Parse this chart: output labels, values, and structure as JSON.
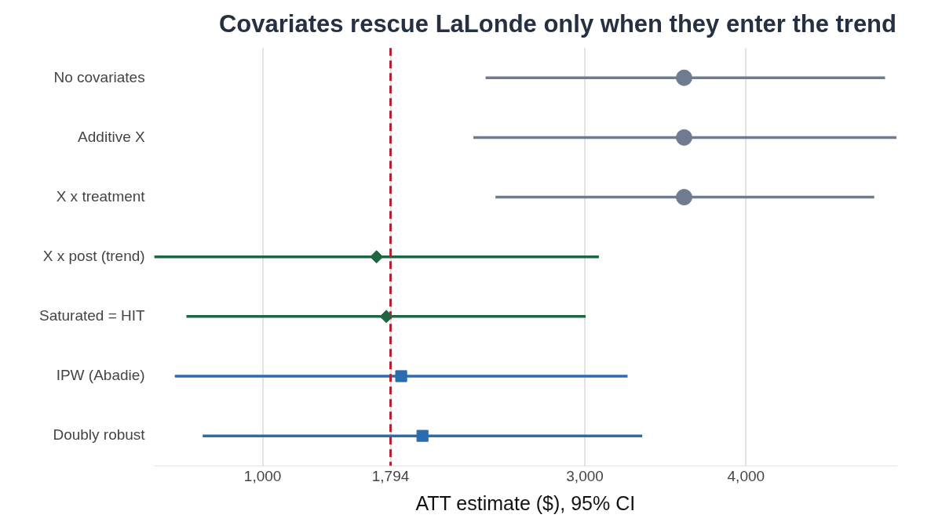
{
  "chart_data": {
    "type": "scatter",
    "orientation": "horizontal",
    "title": "Covariates rescue LaLonde only when they enter the trend",
    "xlabel": "ATT estimate ($), 95% CI",
    "categories": [
      "No covariates",
      "Additive X",
      "X x treatment",
      "X x post (trend)",
      "Saturated = HIT",
      "IPW (Abadie)",
      "Doubly robust"
    ],
    "series": [
      {
        "color": "#6e7b91",
        "marker": "circle",
        "values": [
          3616,
          3616,
          3616,
          null,
          null,
          null,
          null
        ],
        "errors": [
          [
            2384,
            4863
          ],
          [
            2308,
            4934
          ],
          [
            2445,
            4796
          ],
          null,
          null,
          null,
          null
        ]
      },
      {
        "color": "#1f6645",
        "marker": "diamond",
        "values": [
          null,
          null,
          null,
          1707,
          1768,
          null,
          null
        ],
        "errors": [
          null,
          null,
          null,
          [
            328,
            3087
          ],
          [
            527,
            3005
          ],
          null,
          null
        ]
      },
      {
        "color": "#2b6cb0",
        "marker": "square",
        "values": [
          null,
          null,
          null,
          null,
          null,
          1860,
          1992
        ],
        "errors": [
          null,
          null,
          null,
          null,
          null,
          [
            455,
            3265
          ],
          [
            628,
            3356
          ]
        ]
      }
    ],
    "xlim": [
      328,
      4934
    ],
    "xticks": [
      {
        "value": 1000,
        "label": "1,000"
      },
      {
        "value": 1794,
        "label": "1,794"
      },
      {
        "value": 3000,
        "label": "3,000"
      },
      {
        "value": 4000,
        "label": "4,000"
      }
    ],
    "ref_lines": [
      {
        "axis": "x",
        "value": 1794,
        "color": "#b22234",
        "line_style": "dashed"
      }
    ],
    "grid": "x",
    "legend": false
  }
}
